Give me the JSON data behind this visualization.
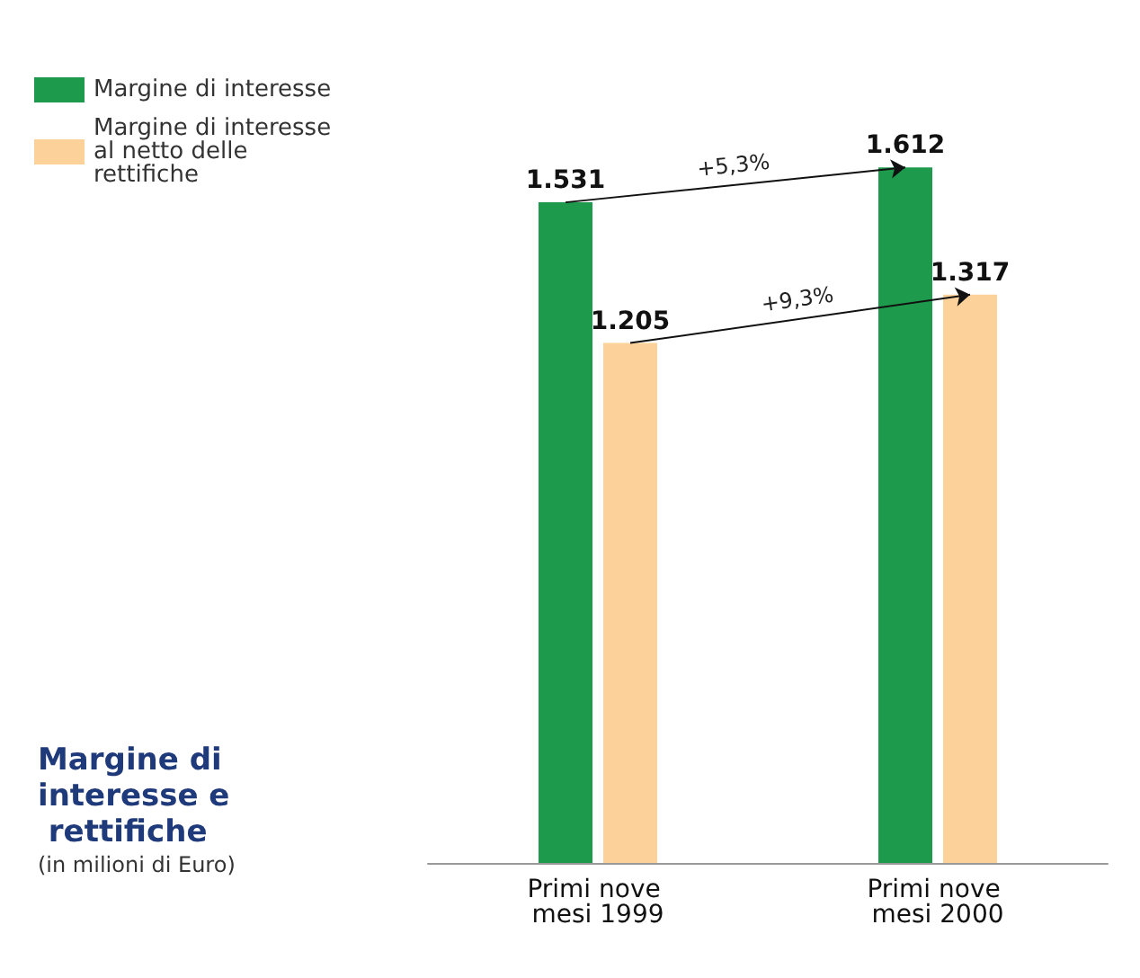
{
  "chart_data": {
    "type": "bar",
    "title": "Margine di interesse e rettifiche",
    "subtitle": "(in milioni di Euro)",
    "categories": [
      "Primi nove mesi 1999",
      "Primi nove mesi 2000"
    ],
    "series": [
      {
        "name": "Margine di interesse",
        "color": "#1e9a4c",
        "values": [
          1531,
          1612
        ],
        "value_labels": [
          "1.531",
          "1.612"
        ]
      },
      {
        "name": "Margine di interesse al netto delle rettifiche",
        "color": "#fdd29a",
        "values": [
          1205,
          1317
        ],
        "value_labels": [
          "1.205",
          "1.317"
        ]
      }
    ],
    "annotations": [
      "+5,3%",
      "+9,3%"
    ],
    "legend": "top left",
    "grid": false
  }
}
